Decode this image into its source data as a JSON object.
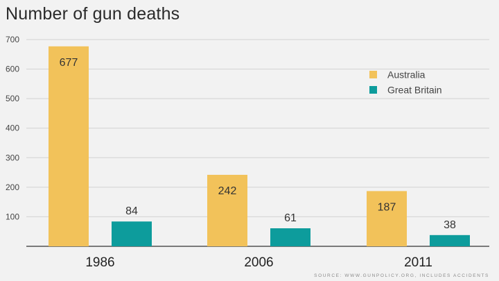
{
  "chart_data": {
    "type": "bar",
    "title": "Number of gun deaths",
    "categories": [
      "1986",
      "2006",
      "2011"
    ],
    "series": [
      {
        "name": "Australia",
        "values": [
          677,
          242,
          187
        ],
        "color": "#f2c25a"
      },
      {
        "name": "Great Britain",
        "values": [
          84,
          61,
          38
        ],
        "color": "#0d9c9c"
      }
    ],
    "ylim": [
      0,
      700
    ],
    "yticks": [
      100,
      200,
      300,
      400,
      500,
      600,
      700
    ],
    "xlabel": "",
    "ylabel": "",
    "grid": true,
    "legend_position": "right"
  },
  "source_text": "SOURCE: WWW.GUNPOLICY.ORG, INCLUDES ACCIDENTS"
}
